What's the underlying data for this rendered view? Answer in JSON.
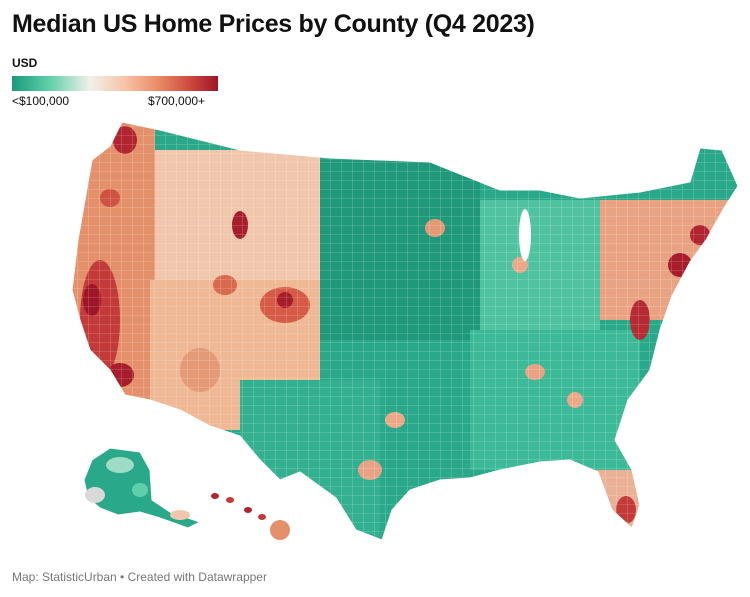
{
  "title": "Median US Home Prices by County (Q4 2023)",
  "legend": {
    "unit": "USD",
    "min_label": "<$100,000",
    "max_label": "$700,000+",
    "low_color": "#1a9a7b",
    "mid_color": "#f1f1ea",
    "high_color": "#9e1528"
  },
  "footer": "Map: StatisticUrban • Created with Datawrapper"
}
